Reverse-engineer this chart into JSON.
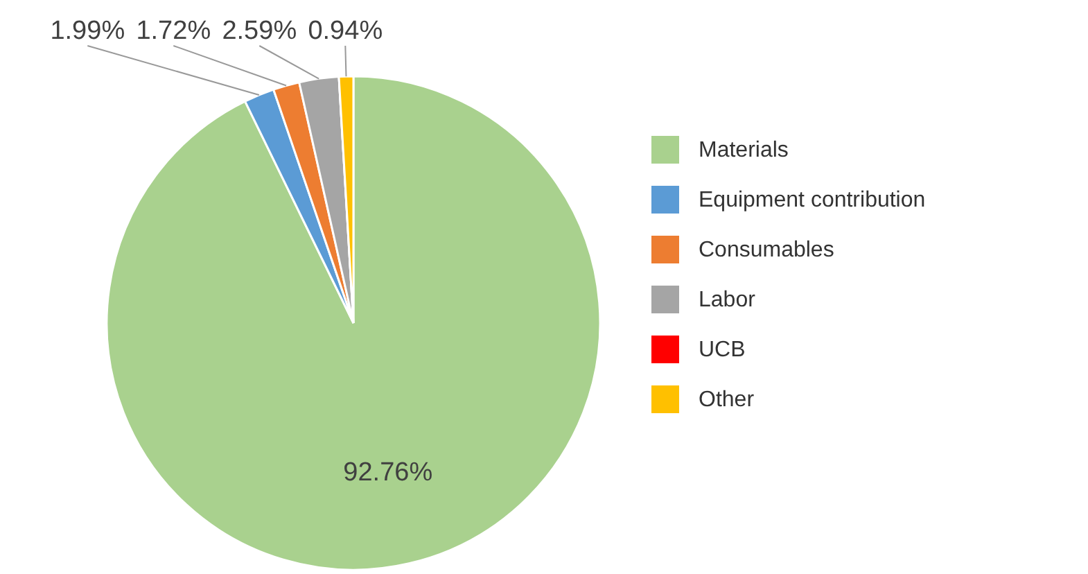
{
  "chart_data": {
    "type": "pie",
    "categories": [
      "Materials",
      "Equipment contribution",
      "Consumables",
      "Labor",
      "UCB",
      "Other"
    ],
    "values": [
      92.76,
      1.99,
      1.72,
      2.59,
      0,
      0.94
    ],
    "colors": [
      "#a9d18e",
      "#5b9bd5",
      "#ed7d31",
      "#a5a5a5",
      "#ff0000",
      "#ffc000"
    ],
    "value_labels": [
      "92.76%",
      "1.99%",
      "1.72%",
      "2.59%",
      null,
      "0.94%"
    ],
    "legend": "right"
  }
}
